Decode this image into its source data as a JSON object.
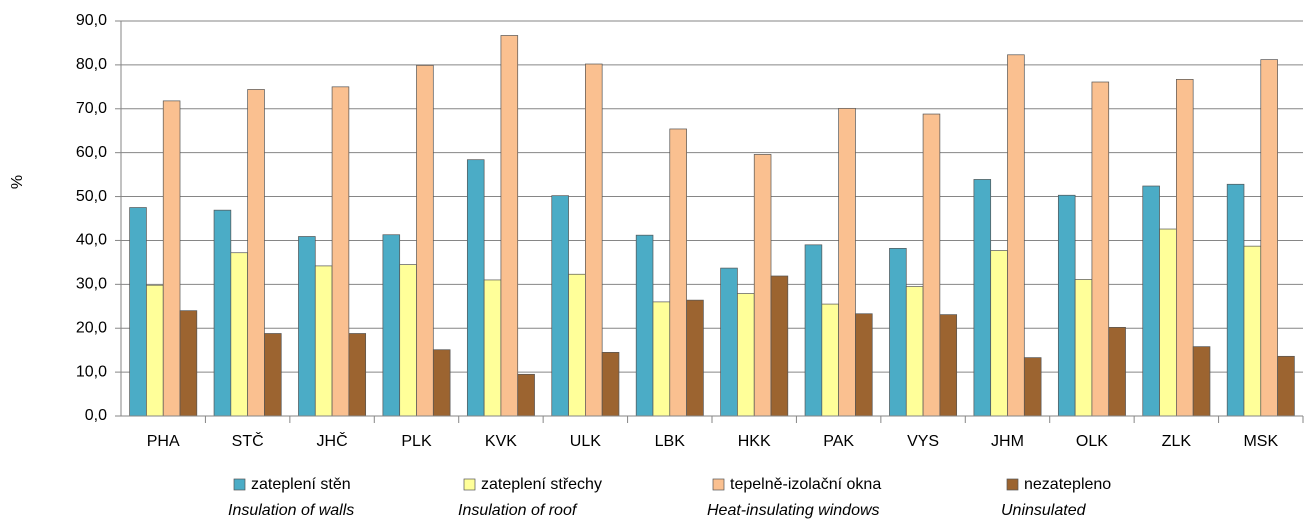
{
  "chart_data": {
    "type": "bar",
    "y_label": "%",
    "categories": [
      "PHA",
      "STČ",
      "JHČ",
      "PLK",
      "KVK",
      "ULK",
      "LBK",
      "HKK",
      "PAK",
      "VYS",
      "JHM",
      "OLK",
      "ZLK",
      "MSK"
    ],
    "series": [
      {
        "name": "zateplení stěn",
        "name_en": "Insulation of walls",
        "color": "#4bacc6",
        "values": [
          47.5,
          46.9,
          40.9,
          41.3,
          58.4,
          50.2,
          41.2,
          33.7,
          39.0,
          38.2,
          53.9,
          50.3,
          52.4,
          52.8
        ]
      },
      {
        "name": "zateplení střechy",
        "name_en": "Insulation of roof",
        "color": "#ffff99",
        "values": [
          29.8,
          37.2,
          34.2,
          34.5,
          31.0,
          32.3,
          26.0,
          27.9,
          25.5,
          29.5,
          37.7,
          31.1,
          42.6,
          38.7
        ]
      },
      {
        "name": "tepelně-izolační okna",
        "name_en": "Heat-insulating windows",
        "color": "#fac090",
        "values": [
          71.8,
          74.4,
          75.0,
          79.9,
          86.7,
          80.2,
          65.4,
          59.6,
          70.1,
          68.8,
          82.3,
          76.1,
          76.7,
          81.2
        ]
      },
      {
        "name": "nezatepleno",
        "name_en": "Uninsulated",
        "color": "#9c6430",
        "values": [
          24.0,
          18.8,
          18.8,
          15.1,
          9.5,
          14.5,
          26.4,
          31.9,
          23.3,
          23.1,
          13.3,
          20.2,
          15.8,
          13.6
        ]
      }
    ],
    "ylim": [
      0,
      90
    ],
    "yticks": [
      {
        "value": 0,
        "label": "0,0"
      },
      {
        "value": 10,
        "label": "10,0"
      },
      {
        "value": 20,
        "label": "20,0"
      },
      {
        "value": 30,
        "label": "30,0"
      },
      {
        "value": 40,
        "label": "40,0"
      },
      {
        "value": 50,
        "label": "50,0"
      },
      {
        "value": 60,
        "label": "60,0"
      },
      {
        "value": 70,
        "label": "70,0"
      },
      {
        "value": 80,
        "label": "80,0"
      },
      {
        "value": 90,
        "label": "90,0"
      }
    ],
    "grid": true
  }
}
